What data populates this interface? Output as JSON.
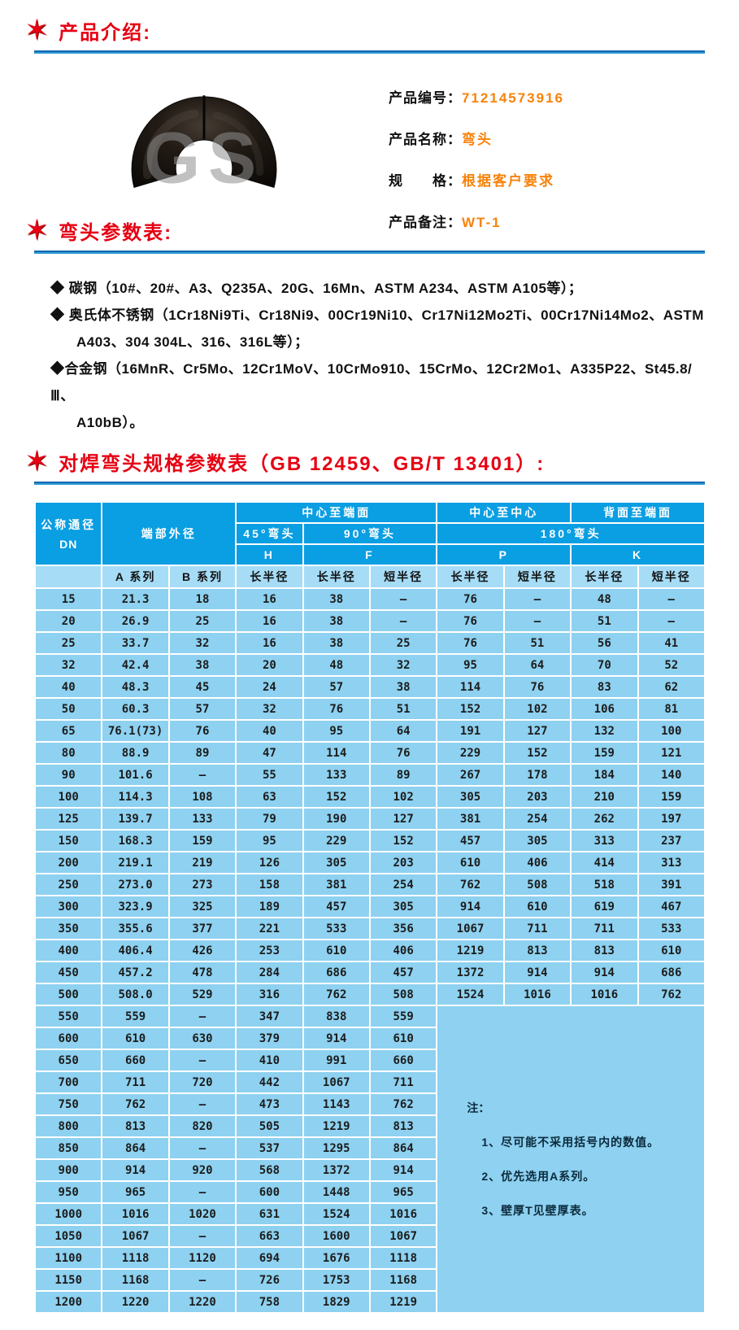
{
  "colors": {
    "accent_red": "#e60012",
    "rule_blue": "#1467ae",
    "value_orange": "#f8820a",
    "header_blue": "#0a9ee2",
    "subheader_blue": "#a6dcf6",
    "cell_blue": "#8ed1f0"
  },
  "star_icon": "✶",
  "sections": {
    "intro": {
      "title": "产品介绍:"
    },
    "params": {
      "title": "弯头参数表:"
    },
    "spec": {
      "title": "对焊弯头规格参数表（GB 12459、GB/T 13401）:"
    }
  },
  "product": {
    "watermark": "GS",
    "fields": [
      {
        "label": "产品编号：",
        "value": "71214573916"
      },
      {
        "label": "产品名称：",
        "value": "弯头"
      },
      {
        "label": "规　　格：",
        "value": "根据客户要求"
      },
      {
        "label": "产品备注：",
        "value": "WT-1"
      }
    ]
  },
  "materials": {
    "lines": [
      {
        "text": "◆ 碳钢（10#、20#、A3、Q235A、20G、16Mn、ASTM A234、ASTM A105等）；",
        "indent": 0
      },
      {
        "text": "◆ 奥氏体不锈钢（1Cr18Ni9Ti、Cr18Ni9、00Cr19Ni10、Cr17Ni12Mo2Ti、00Cr17Ni14Mo2、ASTM",
        "indent": 0
      },
      {
        "text": "A403、304 304L、316、316L等）；",
        "indent": 1
      },
      {
        "text": "◆合金钢（16MnR、Cr5Mo、12Cr1MoV、10CrMo910、15CrMo、12Cr2Mo1、A335P22、St45.8/Ⅲ、",
        "indent": 0
      },
      {
        "text": "A10bB）。",
        "indent": 1
      }
    ]
  },
  "spec_table": {
    "headers": {
      "dn_line1": "公称通径",
      "dn_line2": "DN",
      "end_od": "端部外径",
      "center_to_end": "中心至端面",
      "center_to_center": "中心至中心",
      "back_to_end": "背面至端面",
      "elbow45": "45°弯头",
      "elbow90": "90°弯头",
      "elbow180": "180°弯头",
      "h": "H",
      "f": "F",
      "p": "P",
      "k": "K",
      "series_a": "A 系列",
      "series_b": "B 系列",
      "long_radius": "长半径",
      "short_radius": "短半径"
    },
    "note_row_index": 19,
    "note": {
      "title": "注：",
      "items": [
        "1、尽可能不采用括号内的数值。",
        "2、优先选用A系列。",
        "3、壁厚T见壁厚表。"
      ]
    },
    "rows": [
      [
        "15",
        "21.3",
        "18",
        "16",
        "38",
        "—",
        "76",
        "—",
        "48",
        "—"
      ],
      [
        "20",
        "26.9",
        "25",
        "16",
        "38",
        "—",
        "76",
        "—",
        "51",
        "—"
      ],
      [
        "25",
        "33.7",
        "32",
        "16",
        "38",
        "25",
        "76",
        "51",
        "56",
        "41"
      ],
      [
        "32",
        "42.4",
        "38",
        "20",
        "48",
        "32",
        "95",
        "64",
        "70",
        "52"
      ],
      [
        "40",
        "48.3",
        "45",
        "24",
        "57",
        "38",
        "114",
        "76",
        "83",
        "62"
      ],
      [
        "50",
        "60.3",
        "57",
        "32",
        "76",
        "51",
        "152",
        "102",
        "106",
        "81"
      ],
      [
        "65",
        "76.1(73)",
        "76",
        "40",
        "95",
        "64",
        "191",
        "127",
        "132",
        "100"
      ],
      [
        "80",
        "88.9",
        "89",
        "47",
        "114",
        "76",
        "229",
        "152",
        "159",
        "121"
      ],
      [
        "90",
        "101.6",
        "—",
        "55",
        "133",
        "89",
        "267",
        "178",
        "184",
        "140"
      ],
      [
        "100",
        "114.3",
        "108",
        "63",
        "152",
        "102",
        "305",
        "203",
        "210",
        "159"
      ],
      [
        "125",
        "139.7",
        "133",
        "79",
        "190",
        "127",
        "381",
        "254",
        "262",
        "197"
      ],
      [
        "150",
        "168.3",
        "159",
        "95",
        "229",
        "152",
        "457",
        "305",
        "313",
        "237"
      ],
      [
        "200",
        "219.1",
        "219",
        "126",
        "305",
        "203",
        "610",
        "406",
        "414",
        "313"
      ],
      [
        "250",
        "273.0",
        "273",
        "158",
        "381",
        "254",
        "762",
        "508",
        "518",
        "391"
      ],
      [
        "300",
        "323.9",
        "325",
        "189",
        "457",
        "305",
        "914",
        "610",
        "619",
        "467"
      ],
      [
        "350",
        "355.6",
        "377",
        "221",
        "533",
        "356",
        "1067",
        "711",
        "711",
        "533"
      ],
      [
        "400",
        "406.4",
        "426",
        "253",
        "610",
        "406",
        "1219",
        "813",
        "813",
        "610"
      ],
      [
        "450",
        "457.2",
        "478",
        "284",
        "686",
        "457",
        "1372",
        "914",
        "914",
        "686"
      ],
      [
        "500",
        "508.0",
        "529",
        "316",
        "762",
        "508",
        "1524",
        "1016",
        "1016",
        "762"
      ],
      [
        "550",
        "559",
        "—",
        "347",
        "838",
        "559"
      ],
      [
        "600",
        "610",
        "630",
        "379",
        "914",
        "610"
      ],
      [
        "650",
        "660",
        "—",
        "410",
        "991",
        "660"
      ],
      [
        "700",
        "711",
        "720",
        "442",
        "1067",
        "711"
      ],
      [
        "750",
        "762",
        "—",
        "473",
        "1143",
        "762"
      ],
      [
        "800",
        "813",
        "820",
        "505",
        "1219",
        "813"
      ],
      [
        "850",
        "864",
        "—",
        "537",
        "1295",
        "864"
      ],
      [
        "900",
        "914",
        "920",
        "568",
        "1372",
        "914"
      ],
      [
        "950",
        "965",
        "—",
        "600",
        "1448",
        "965"
      ],
      [
        "1000",
        "1016",
        "1020",
        "631",
        "1524",
        "1016"
      ],
      [
        "1050",
        "1067",
        "—",
        "663",
        "1600",
        "1067"
      ],
      [
        "1100",
        "1118",
        "1120",
        "694",
        "1676",
        "1118"
      ],
      [
        "1150",
        "1168",
        "—",
        "726",
        "1753",
        "1168"
      ],
      [
        "1200",
        "1220",
        "1220",
        "758",
        "1829",
        "1219"
      ]
    ]
  }
}
